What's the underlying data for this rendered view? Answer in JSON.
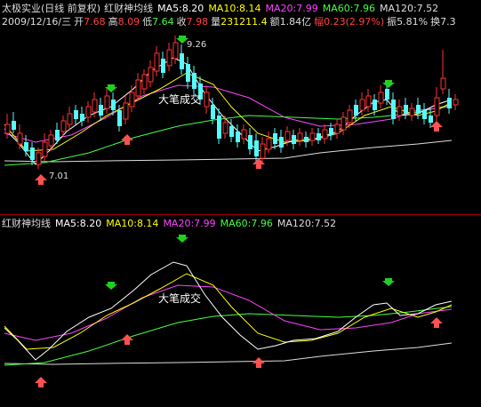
{
  "stock": {
    "name": "太极实业(日线 前复权)",
    "indicator": "红财神均线"
  },
  "ma_legend": [
    {
      "label": "MA5:8.20",
      "color": "#ffffff"
    },
    {
      "label": "MA10:8.14",
      "color": "#ffff00"
    },
    {
      "label": "MA20:7.99",
      "color": "#ff44ff"
    },
    {
      "label": "MA60:7.96",
      "color": "#44ff44"
    },
    {
      "label": "MA120:7.52",
      "color": "#dddddd"
    }
  ],
  "quote": {
    "date": "2009/12/16/三",
    "open_label": "开",
    "open": "7.68",
    "high_label": "高",
    "high": "8.09",
    "low_label": "低",
    "low": "7.64",
    "close_label": "收",
    "close": "7.98",
    "vol_label": "量",
    "vol": "231211.4",
    "amt_label": "额",
    "amt": "1.84亿",
    "chg_label": "幅",
    "chg": "0.23(2.97%)",
    "amp_label": "振",
    "amp": "5.81%",
    "turn_label": "换",
    "turn": "7.3"
  },
  "annotations": {
    "watermark": "大笔成交",
    "high_price": "9.26",
    "low_price": "7.01"
  },
  "colors": {
    "up": "#ff3232",
    "down": "#54fcfc",
    "buy": "#ff5050",
    "sell": "#20d020"
  }
}
